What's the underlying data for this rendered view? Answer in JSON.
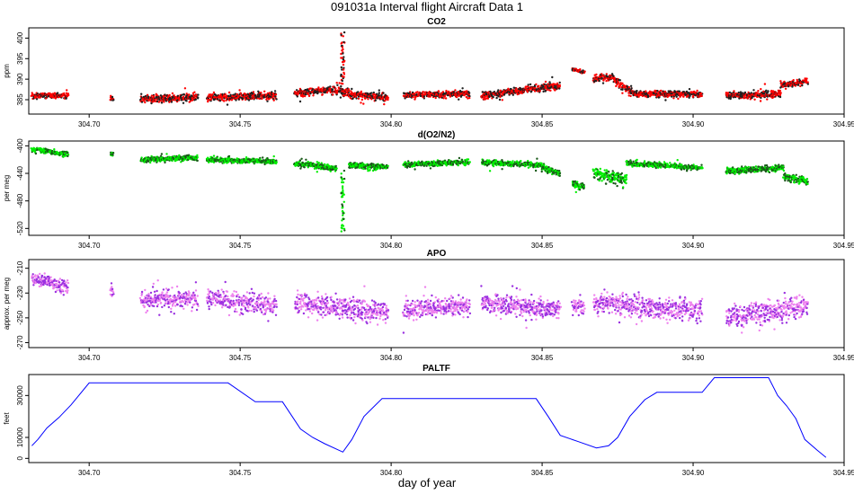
{
  "figure": {
    "title": "091031a   Interval flight Aircraft Data 1",
    "xlabel": "day of year"
  },
  "chart_data": [
    {
      "type": "scatter",
      "title": "CO2",
      "ylabel": "ppm",
      "xlim": [
        304.68,
        304.95
      ],
      "ylim": [
        381.5,
        402.5
      ],
      "yticks": [
        385,
        390,
        395,
        400
      ],
      "xticks": [
        "304.70",
        "304.75",
        "304.80",
        "304.85",
        "304.90",
        "304.95"
      ],
      "color": "#ff0000",
      "edge_color": "#202020",
      "segments": [
        {
          "x": [
            304.681,
            304.693
          ],
          "y": [
            386.0,
            386.0
          ],
          "noise": 1.0
        },
        {
          "x": [
            304.707,
            304.708
          ],
          "y": [
            385.5,
            385.0
          ],
          "noise": 0.8
        },
        {
          "x": [
            304.717,
            304.736
          ],
          "y": [
            385.2,
            385.5
          ],
          "noise": 1.2
        },
        {
          "x": [
            304.739,
            304.762
          ],
          "y": [
            385.5,
            386.0
          ],
          "noise": 1.2
        },
        {
          "x": [
            304.768,
            304.78
          ],
          "y": [
            386.5,
            387.5
          ],
          "noise": 1.2
        },
        {
          "x": [
            304.78,
            304.787
          ],
          "y": [
            387.5,
            386.5
          ],
          "noise": 1.5
        },
        {
          "x": [
            304.787,
            304.799
          ],
          "y": [
            386.2,
            385.6
          ],
          "noise": 1.2
        },
        {
          "x": [
            304.804,
            304.826
          ],
          "y": [
            386.0,
            386.5
          ],
          "noise": 1.0
        },
        {
          "x": [
            304.83,
            304.856
          ],
          "y": [
            386.0,
            388.5
          ],
          "noise": 1.2
        },
        {
          "x": [
            304.86,
            304.862
          ],
          "y": [
            392.5,
            392.0
          ],
          "noise": 0.6
        },
        {
          "x": [
            304.862,
            304.864
          ],
          "y": [
            392.0,
            391.5
          ],
          "noise": 0.6
        },
        {
          "x": [
            304.867,
            304.874
          ],
          "y": [
            390.0,
            390.5
          ],
          "noise": 1.0
        },
        {
          "x": [
            304.874,
            304.88
          ],
          "y": [
            389.5,
            387.0
          ],
          "noise": 1.2
        },
        {
          "x": [
            304.88,
            304.903
          ],
          "y": [
            386.5,
            386.3
          ],
          "noise": 1.0
        },
        {
          "x": [
            304.911,
            304.929
          ],
          "y": [
            385.8,
            386.5
          ],
          "noise": 1.2
        },
        {
          "x": [
            304.929,
            304.938
          ],
          "y": [
            388.5,
            389.5
          ],
          "noise": 1.0
        }
      ],
      "spikes": [
        {
          "x": 304.784,
          "ymin": 386,
          "ymax": 401.5,
          "count": 50
        }
      ]
    },
    {
      "type": "scatter",
      "title": "d(O2/N2)",
      "ylabel": "per meg",
      "xlim": [
        304.68,
        304.95
      ],
      "ylim": [
        -530,
        -393
      ],
      "yticks": [
        -400,
        -440,
        -480,
        -520
      ],
      "xticks": [
        "304.70",
        "304.75",
        "304.80",
        "304.85",
        "304.90",
        "304.95"
      ],
      "color": "#00ee00",
      "edge_color": "#1a5a1a",
      "segments": [
        {
          "x": [
            304.681,
            304.693
          ],
          "y": [
            -405,
            -412
          ],
          "noise": 5
        },
        {
          "x": [
            304.707,
            304.708
          ],
          "y": [
            -412,
            -412
          ],
          "noise": 4
        },
        {
          "x": [
            304.717,
            304.736
          ],
          "y": [
            -420,
            -417
          ],
          "noise": 5
        },
        {
          "x": [
            304.739,
            304.762
          ],
          "y": [
            -420,
            -423
          ],
          "noise": 5
        },
        {
          "x": [
            304.768,
            304.782
          ],
          "y": [
            -425,
            -433
          ],
          "noise": 6
        },
        {
          "x": [
            304.786,
            304.799
          ],
          "y": [
            -428,
            -430
          ],
          "noise": 6
        },
        {
          "x": [
            304.804,
            304.826
          ],
          "y": [
            -427,
            -424
          ],
          "noise": 5
        },
        {
          "x": [
            304.83,
            304.85
          ],
          "y": [
            -424,
            -428
          ],
          "noise": 5
        },
        {
          "x": [
            304.85,
            304.856
          ],
          "y": [
            -432,
            -440
          ],
          "noise": 6
        },
        {
          "x": [
            304.86,
            304.864
          ],
          "y": [
            -455,
            -460
          ],
          "noise": 6
        },
        {
          "x": [
            304.867,
            304.878
          ],
          "y": [
            -440,
            -450
          ],
          "noise": 12
        },
        {
          "x": [
            304.878,
            304.903
          ],
          "y": [
            -425,
            -432
          ],
          "noise": 5
        },
        {
          "x": [
            304.911,
            304.93
          ],
          "y": [
            -437,
            -432
          ],
          "noise": 6
        },
        {
          "x": [
            304.93,
            304.938
          ],
          "y": [
            -445,
            -452
          ],
          "noise": 7
        }
      ],
      "spikes": [
        {
          "x": 304.784,
          "ymin": -525,
          "ymax": -435,
          "count": 45
        }
      ]
    },
    {
      "type": "scatter",
      "title": "APO",
      "ylabel": "approx. per meg",
      "xlim": [
        304.68,
        304.95
      ],
      "ylim": [
        -274,
        -203
      ],
      "yticks": [
        -210,
        -230,
        -250,
        -270
      ],
      "xticks": [
        "304.70",
        "304.75",
        "304.80",
        "304.85",
        "304.90",
        "304.95"
      ],
      "color": "#ee82ee",
      "edge_color": "#9a30e0",
      "segments": [
        {
          "x": [
            304.681,
            304.693
          ],
          "y": [
            -218,
            -225
          ],
          "noise": 8
        },
        {
          "x": [
            304.707,
            304.708
          ],
          "y": [
            -228,
            -228
          ],
          "noise": 6
        },
        {
          "x": [
            304.717,
            304.736
          ],
          "y": [
            -236,
            -234
          ],
          "noise": 10
        },
        {
          "x": [
            304.739,
            304.762
          ],
          "y": [
            -234,
            -240
          ],
          "noise": 10
        },
        {
          "x": [
            304.768,
            304.799
          ],
          "y": [
            -238,
            -245
          ],
          "noise": 12
        },
        {
          "x": [
            304.804,
            304.826
          ],
          "y": [
            -244,
            -240
          ],
          "noise": 10
        },
        {
          "x": [
            304.83,
            304.856
          ],
          "y": [
            -238,
            -244
          ],
          "noise": 10
        },
        {
          "x": [
            304.86,
            304.864
          ],
          "y": [
            -240,
            -242
          ],
          "noise": 8
        },
        {
          "x": [
            304.867,
            304.903
          ],
          "y": [
            -238,
            -245
          ],
          "noise": 12
        },
        {
          "x": [
            304.911,
            304.938
          ],
          "y": [
            -250,
            -240
          ],
          "noise": 12
        }
      ],
      "spikes": []
    },
    {
      "type": "line",
      "title": "PALTF",
      "ylabel": "feet",
      "xlim": [
        304.68,
        304.95
      ],
      "ylim": [
        -2000,
        40000
      ],
      "yticks": [
        0,
        10000,
        30000
      ],
      "ytick_labels": [
        "0",
        "10000",
        "30000"
      ],
      "xticks": [
        "304.70",
        "304.75",
        "304.80",
        "304.85",
        "304.90",
        "304.95"
      ],
      "color": "#0000ff",
      "x": [
        304.681,
        304.683,
        304.686,
        304.69,
        304.694,
        304.7,
        304.746,
        304.755,
        304.764,
        304.77,
        304.774,
        304.778,
        304.784,
        304.787,
        304.791,
        304.797,
        304.808,
        304.818,
        304.848,
        304.852,
        304.856,
        304.862,
        304.868,
        304.872,
        304.875,
        304.879,
        304.884,
        304.888,
        304.897,
        304.903,
        304.907,
        304.925,
        304.928,
        304.931,
        304.934,
        304.937,
        304.941,
        304.944
      ],
      "y": [
        6000,
        9000,
        14500,
        19500,
        25500,
        36000,
        36000,
        27000,
        27000,
        14000,
        10000,
        7000,
        3000,
        9000,
        20000,
        28500,
        28500,
        28500,
        28500,
        20000,
        11000,
        8000,
        5000,
        6000,
        10000,
        20000,
        28000,
        31500,
        31500,
        31500,
        38500,
        38500,
        30000,
        25000,
        19000,
        9000,
        4000,
        500
      ]
    }
  ]
}
